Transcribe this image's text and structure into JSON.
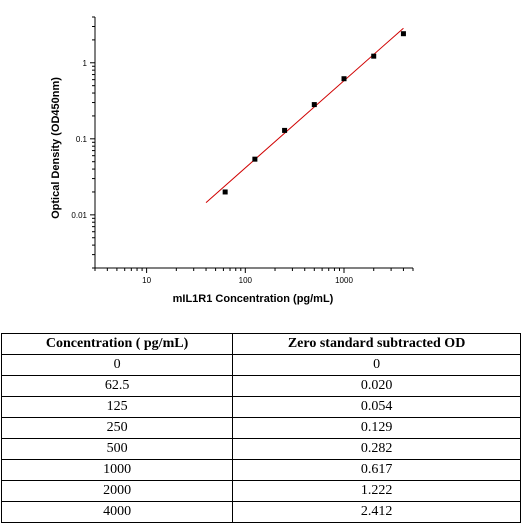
{
  "chart_data": {
    "type": "scatter",
    "xlabel": "mIL1R1 Concentration (pg/mL)",
    "ylabel": "Optical Density (OD450nm)",
    "x_scale": "log",
    "y_scale": "log",
    "xlim": [
      3,
      5000
    ],
    "ylim": [
      0.002,
      4
    ],
    "x_ticks": [
      {
        "value": 10,
        "label": "10"
      },
      {
        "value": 100,
        "label": "100"
      },
      {
        "value": 1000,
        "label": "1000"
      }
    ],
    "y_ticks": [
      {
        "value": 0.01,
        "label": "0.01"
      },
      {
        "value": 0.1,
        "label": "0.1"
      },
      {
        "value": 1,
        "label": "1"
      }
    ],
    "grid": false,
    "legend": "none",
    "point_color": "#000000",
    "fit_color": "#d00000",
    "points": [
      {
        "x": 62.5,
        "y": 0.02
      },
      {
        "x": 125,
        "y": 0.054
      },
      {
        "x": 250,
        "y": 0.129
      },
      {
        "x": 500,
        "y": 0.282
      },
      {
        "x": 1000,
        "y": 0.617
      },
      {
        "x": 2000,
        "y": 1.222
      },
      {
        "x": 4000,
        "y": 2.412
      }
    ],
    "fit_line": [
      {
        "x": 40,
        "y": 0.0145
      },
      {
        "x": 4000,
        "y": 2.85
      }
    ]
  },
  "table": {
    "headers": [
      "Concentration ( pg/mL)",
      "Zero standard subtracted OD"
    ],
    "rows": [
      [
        "0",
        "0"
      ],
      [
        "62.5",
        "0.020"
      ],
      [
        "125",
        "0.054"
      ],
      [
        "250",
        "0.129"
      ],
      [
        "500",
        "0.282"
      ],
      [
        "1000",
        "0.617"
      ],
      [
        "2000",
        "1.222"
      ],
      [
        "4000",
        "2.412"
      ]
    ]
  }
}
